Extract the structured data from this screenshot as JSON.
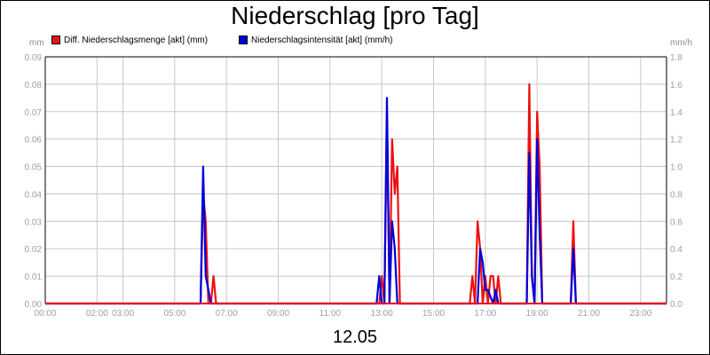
{
  "title": "Niederschlag [pro Tag]",
  "date_label": "12.05",
  "left_unit": "mm",
  "right_unit": "mm/h",
  "colors": {
    "series1": "#ee1111",
    "series2": "#0000dd",
    "grid": "#c8c8c8",
    "axis": "#000000",
    "tick_text": "#a0a0a0"
  },
  "chart_data": {
    "type": "line",
    "title": "Niederschlag [pro Tag]",
    "xlabel": "12.05",
    "x_ticks": [
      "00:00",
      "02:00",
      "03:00",
      "05:00",
      "07:00",
      "09:00",
      "11:00",
      "13:00",
      "15:00",
      "17:00",
      "19:00",
      "21:00",
      "23:00"
    ],
    "x_tick_hours": [
      0,
      2,
      3,
      5,
      7,
      9,
      11,
      13,
      15,
      17,
      19,
      21,
      23
    ],
    "xlim_hours": [
      0,
      24
    ],
    "y_left": {
      "label": "mm",
      "ticks": [
        "0.00",
        "0.01",
        "0.02",
        "0.03",
        "0.04",
        "0.05",
        "0.06",
        "0.07",
        "0.08",
        "0.09"
      ],
      "ylim": [
        0,
        0.09
      ]
    },
    "y_right": {
      "label": "mm/h",
      "ticks": [
        "0.0",
        "0.2",
        "0.4",
        "0.6",
        "0.8",
        "1.0",
        "1.2",
        "1.4",
        "1.6",
        "1.8"
      ],
      "ylim": [
        0,
        1.8
      ]
    },
    "grid": true,
    "legend_position": "top-left",
    "series": [
      {
        "name": "Diff. Niederschlagsmenge [akt] (mm)",
        "axis": "left",
        "x_hours": [
          0,
          5.9,
          6.0,
          6.1,
          6.2,
          6.3,
          6.4,
          6.5,
          6.6,
          6.7,
          6.8,
          12.8,
          12.9,
          13.0,
          13.1,
          13.2,
          13.3,
          13.4,
          13.5,
          13.6,
          13.7,
          13.8,
          13.9,
          16.3,
          16.4,
          16.5,
          16.6,
          16.7,
          16.8,
          16.9,
          17.0,
          17.1,
          17.2,
          17.3,
          17.4,
          17.5,
          17.6,
          17.7,
          17.8,
          17.9,
          18.0,
          18.6,
          18.7,
          18.8,
          18.9,
          19.0,
          19.1,
          19.2,
          19.3,
          19.4,
          20.3,
          20.4,
          20.5,
          20.6,
          24
        ],
        "y": [
          0,
          0,
          0,
          0.04,
          0.03,
          0,
          0,
          0.01,
          0,
          0,
          0,
          0,
          0,
          0.01,
          0,
          0.07,
          0,
          0.06,
          0.04,
          0.05,
          0,
          0,
          0,
          0,
          0,
          0.01,
          0,
          0.03,
          0.02,
          0,
          0.01,
          0,
          0.01,
          0.01,
          0,
          0.01,
          0,
          0,
          0,
          0,
          0,
          0,
          0.08,
          0.01,
          0,
          0.07,
          0.05,
          0,
          0,
          0,
          0,
          0.03,
          0,
          0,
          0
        ]
      },
      {
        "name": "Niederschlagsintensität [akt] (mm/h)",
        "axis": "right",
        "x_hours": [
          0,
          5.9,
          6.0,
          6.1,
          6.2,
          6.3,
          6.4,
          6.5,
          12.8,
          12.9,
          13.0,
          13.1,
          13.2,
          13.3,
          13.4,
          13.5,
          13.6,
          13.7,
          16.7,
          16.8,
          16.9,
          17.0,
          17.1,
          17.2,
          17.3,
          17.4,
          17.5,
          17.6,
          18.5,
          18.6,
          18.7,
          18.8,
          18.9,
          19.0,
          19.1,
          19.2,
          19.3,
          20.3,
          20.4,
          20.5,
          20.6,
          24
        ],
        "y": [
          0,
          0,
          0,
          1.0,
          0.2,
          0.1,
          0,
          0,
          0,
          0.2,
          0,
          0,
          1.5,
          0,
          0.6,
          0.4,
          0,
          0,
          0,
          0.4,
          0.3,
          0.1,
          0.1,
          0.05,
          0,
          0.1,
          0,
          0,
          0,
          0,
          1.1,
          0.2,
          0,
          1.2,
          0.5,
          0,
          0,
          0,
          0.4,
          0,
          0,
          0
        ]
      }
    ]
  }
}
